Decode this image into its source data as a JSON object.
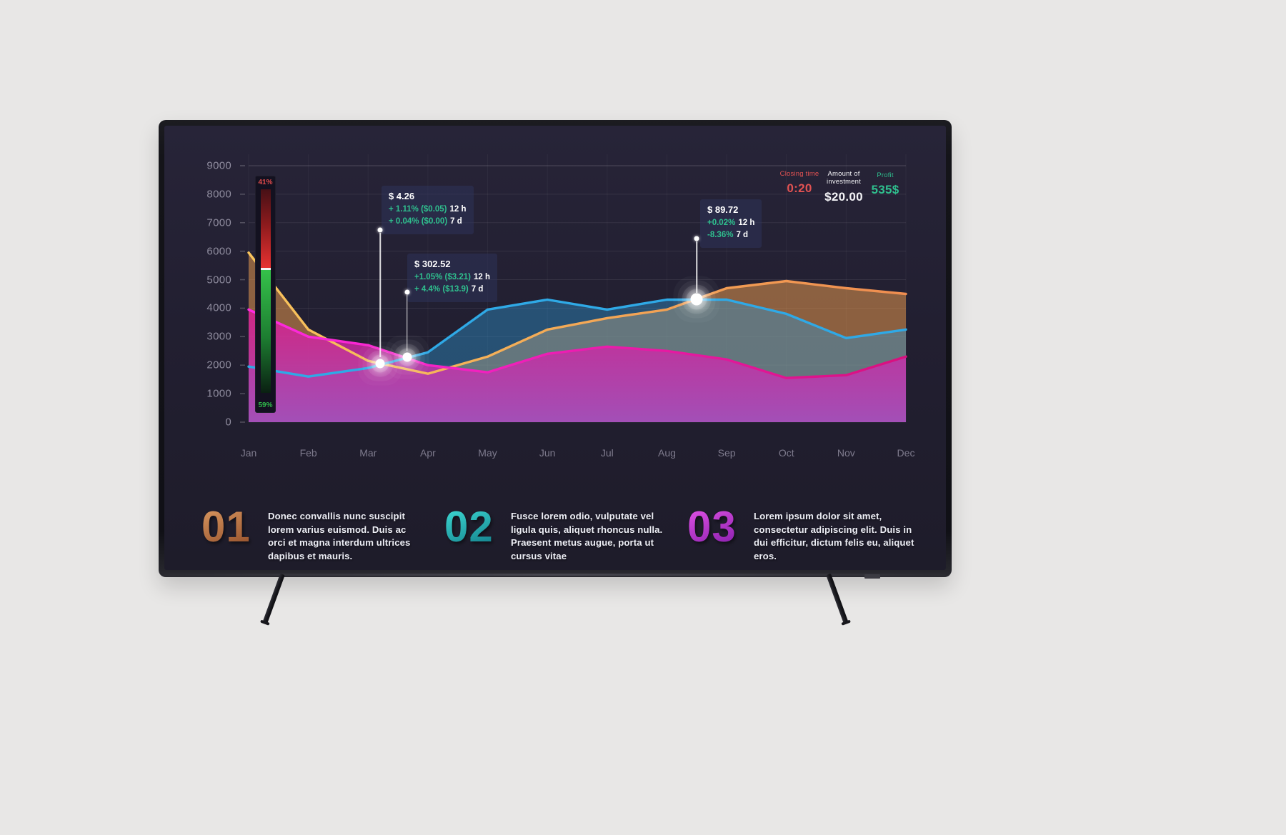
{
  "stats": {
    "closing_time": {
      "label": "Closing time",
      "value": "0:20",
      "color": "#e25252"
    },
    "investment": {
      "label": "Amount of investment",
      "value": "$20.00",
      "color": "#f2f2f5"
    },
    "profit": {
      "label": "Profit",
      "value": "535$",
      "color": "#2fbf8e"
    }
  },
  "gauge": {
    "top_label": "41%",
    "bottom_label": "59%",
    "top_color": "#e14b4b",
    "bottom_color": "#2fb54a"
  },
  "tooltips": [
    {
      "price": "$ 4.26",
      "rows": [
        {
          "pct": "+ 1.11% ($0.05)",
          "period": "12 h"
        },
        {
          "pct": "+ 0.04% ($0.00)",
          "period": "7 d"
        }
      ]
    },
    {
      "price": "$ 302.52",
      "rows": [
        {
          "pct": "+1.05% ($3.21)",
          "period": "12 h"
        },
        {
          "pct": "+ 4.4% ($13.9)",
          "period": "7 d"
        }
      ]
    },
    {
      "price": "$ 89.72",
      "rows": [
        {
          "pct": "+0.02%",
          "period": "12 h"
        },
        {
          "pct": "-8.36%",
          "period": "7 d"
        }
      ]
    }
  ],
  "sections": [
    {
      "number": "01",
      "text": "Donec convallis nunc suscipit lorem varius euismod. Duis ac orci et magna interdum ultrices dapibus et mauris."
    },
    {
      "number": "02",
      "text": "Fusce lorem odio, vulputate vel ligula quis, aliquet rhoncus nulla. Praesent metus augue, porta ut cursus vitae"
    },
    {
      "number": "03",
      "text": "Lorem ipsum dolor sit amet, consectetur adipiscing elit. Duis in dui efficitur, dictum felis eu, aliquet eros."
    }
  ],
  "chart_data": {
    "type": "area",
    "title": "",
    "categories": [
      "Jan",
      "Feb",
      "Mar",
      "Apr",
      "May",
      "Jun",
      "Jul",
      "Aug",
      "Sep",
      "Oct",
      "Nov",
      "Dec"
    ],
    "series": [
      {
        "name": "orange",
        "color": "#f5a35a",
        "values": [
          5950,
          3250,
          2150,
          1700,
          2300,
          3250,
          3650,
          3950,
          4700,
          4950,
          4700,
          4500
        ]
      },
      {
        "name": "blue",
        "color": "#2fa9e6",
        "values": [
          1950,
          1600,
          1900,
          2450,
          3950,
          4300,
          3950,
          4300,
          4300,
          3800,
          2950,
          3250
        ]
      },
      {
        "name": "magenta",
        "color": "#f01ddb",
        "values": [
          3950,
          3000,
          2700,
          2000,
          1750,
          2400,
          2650,
          2500,
          2200,
          1550,
          1650,
          2300
        ]
      }
    ],
    "ylim": [
      0,
      9000
    ],
    "y_tick_step": 1000,
    "y_tick_labels": [
      "9000",
      "8000",
      "7000",
      "6000",
      "5000",
      "4000",
      "3000",
      "2000",
      "1000",
      "0"
    ],
    "grid": true,
    "legend": false,
    "markers": [
      {
        "series": "orange",
        "month_index": 2.2,
        "value": 2050
      },
      {
        "series": "blue",
        "month_index": 2.65,
        "value": 2280
      },
      {
        "series": "blue",
        "month_index": 7.5,
        "value": 4320
      }
    ]
  }
}
